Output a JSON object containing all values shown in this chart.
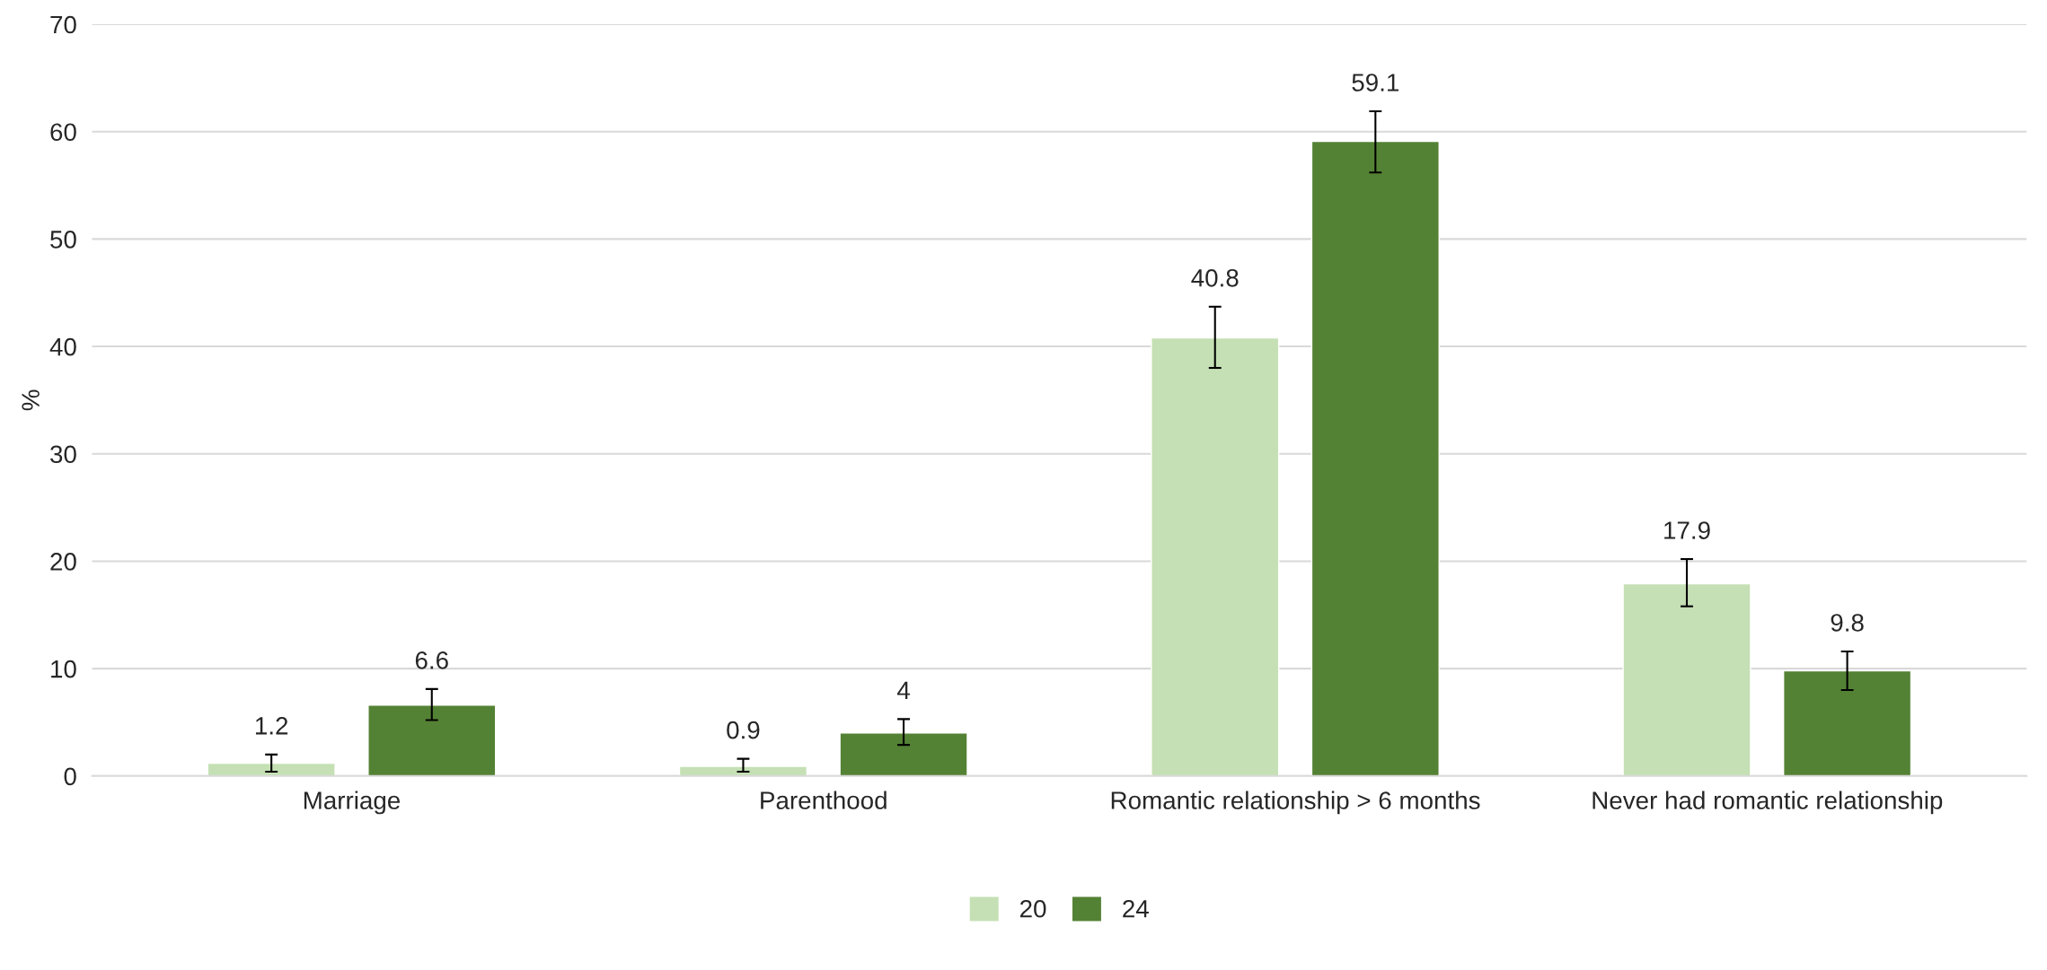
{
  "chart_data": {
    "type": "bar",
    "ylabel": "%",
    "categories": [
      "Marriage",
      "Parenthood",
      "Romantic relationship > 6 months",
      "Never had romantic relationship"
    ],
    "series": [
      {
        "name": "20",
        "color": "#c5e0b4",
        "values": [
          1.2,
          0.9,
          40.8,
          17.9
        ],
        "errors": [
          [
            0.4,
            2.0
          ],
          [
            0.4,
            1.6
          ],
          [
            38.0,
            43.7
          ],
          [
            15.8,
            20.2
          ]
        ]
      },
      {
        "name": "24",
        "color": "#548235",
        "values": [
          6.6,
          4,
          59.1,
          9.8
        ],
        "errors": [
          [
            5.2,
            8.1
          ],
          [
            2.9,
            5.3
          ],
          [
            56.2,
            61.9
          ],
          [
            8.0,
            11.6
          ]
        ]
      }
    ],
    "ylim": [
      0,
      70
    ],
    "yticks": [
      0,
      10,
      20,
      30,
      40,
      50,
      60,
      70
    ],
    "grid": "y",
    "legend": "bottom",
    "data_labels": true
  }
}
